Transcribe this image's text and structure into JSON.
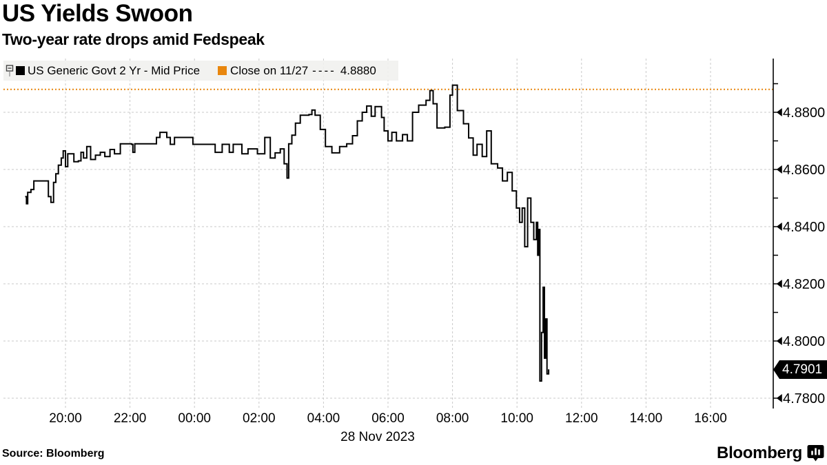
{
  "header": {
    "title": "US Yields Swoon",
    "subtitle": "Two-year rate drops amid Fedspeak"
  },
  "legend": {
    "flag_icon": "chart-flag-icon",
    "series_swatch_color": "#000000",
    "series_label": "US Generic Govt 2 Yr - Mid Price",
    "close_swatch_color": "#e8860d",
    "close_label": "Close on 11/27",
    "close_dashes": "----",
    "close_value": "4.8880"
  },
  "footer": {
    "source": "Source: Bloomberg",
    "brand": "Bloomberg",
    "brand_icon": "bloomberg-terminal-icon"
  },
  "colors": {
    "line_black": "#000000",
    "accent_orange": "#e8860d",
    "grid_gray": "#c9c9c9",
    "legend_bg": "#f0f0ee",
    "badge_bg": "#000000",
    "badge_fg": "#ffffff"
  },
  "annotations": {
    "last_price": "4.7901"
  },
  "chart_data": {
    "type": "line",
    "style": "step",
    "title": "US Yields Swoon",
    "subtitle": "Two-year rate drops amid Fedspeak",
    "x_axis": {
      "unit": "hour-of-day (27-28 Nov 2023, hours >24 are 28 Nov)",
      "start": 18.75,
      "end": 41.95,
      "date_label": "28 Nov 2023",
      "ticks": [
        {
          "hour": 20,
          "label": "20:00"
        },
        {
          "hour": 22,
          "label": "22:00"
        },
        {
          "hour": 24,
          "label": "00:00"
        },
        {
          "hour": 26,
          "label": "02:00"
        },
        {
          "hour": 28,
          "label": "04:00"
        },
        {
          "hour": 30,
          "label": "06:00"
        },
        {
          "hour": 32,
          "label": "08:00"
        },
        {
          "hour": 34,
          "label": "10:00"
        },
        {
          "hour": 36,
          "label": "12:00"
        },
        {
          "hour": 38,
          "label": "14:00"
        },
        {
          "hour": 40,
          "label": "16:00"
        }
      ]
    },
    "y_axis": {
      "min": 4.776,
      "max": 4.892,
      "ticks": [
        {
          "value": 4.88,
          "label": "4.8800"
        },
        {
          "value": 4.86,
          "label": "4.8600"
        },
        {
          "value": 4.84,
          "label": "4.8400"
        },
        {
          "value": 4.82,
          "label": "4.8200"
        },
        {
          "value": 4.8,
          "label": "4.8000"
        },
        {
          "value": 4.78,
          "label": "4.7800"
        }
      ],
      "minor_ticks": [
        4.89,
        4.87,
        4.85,
        4.83,
        4.81,
        4.79
      ]
    },
    "reference_line": {
      "label": "Close on 11/27",
      "value": 4.888,
      "color": "#e8860d",
      "style": "dotted"
    },
    "last_value": 4.7901,
    "grid": true,
    "legend_position": "top-left",
    "series": [
      {
        "name": "US Generic Govt 2 Yr - Mid Price",
        "color": "#000000",
        "points": [
          [
            18.75,
            4.8505
          ],
          [
            18.79,
            4.848
          ],
          [
            18.83,
            4.852
          ],
          [
            18.93,
            4.853
          ],
          [
            19.02,
            4.856
          ],
          [
            19.42,
            4.856
          ],
          [
            19.47,
            4.8505
          ],
          [
            19.55,
            4.8485
          ],
          [
            19.63,
            4.8555
          ],
          [
            19.7,
            4.8585
          ],
          [
            19.78,
            4.8615
          ],
          [
            19.87,
            4.864
          ],
          [
            19.93,
            4.8665
          ],
          [
            20.0,
            4.861
          ],
          [
            20.07,
            4.8655
          ],
          [
            20.2,
            4.8655
          ],
          [
            20.26,
            4.8627
          ],
          [
            20.4,
            4.863
          ],
          [
            20.48,
            4.866
          ],
          [
            20.56,
            4.864
          ],
          [
            20.66,
            4.868
          ],
          [
            20.78,
            4.8635
          ],
          [
            20.93,
            4.865
          ],
          [
            21.08,
            4.866
          ],
          [
            21.22,
            4.8645
          ],
          [
            21.38,
            4.867
          ],
          [
            21.52,
            4.8655
          ],
          [
            21.7,
            4.869
          ],
          [
            22.05,
            4.8688
          ],
          [
            22.09,
            4.866
          ],
          [
            22.15,
            4.869
          ],
          [
            22.75,
            4.869
          ],
          [
            22.82,
            4.8712
          ],
          [
            22.93,
            4.873
          ],
          [
            23.14,
            4.8712
          ],
          [
            23.25,
            4.8688
          ],
          [
            23.38,
            4.8712
          ],
          [
            23.9,
            4.8712
          ],
          [
            23.95,
            4.8688
          ],
          [
            24.6,
            4.8688
          ],
          [
            24.64,
            4.866
          ],
          [
            24.82,
            4.866
          ],
          [
            24.86,
            4.8688
          ],
          [
            25.04,
            4.8688
          ],
          [
            25.08,
            4.866
          ],
          [
            25.2,
            4.8688
          ],
          [
            25.47,
            4.8655
          ],
          [
            25.66,
            4.8672
          ],
          [
            25.95,
            4.8655
          ],
          [
            26.18,
            4.8712
          ],
          [
            26.35,
            4.864
          ],
          [
            26.5,
            4.8658
          ],
          [
            26.66,
            4.8672
          ],
          [
            26.78,
            4.862
          ],
          [
            26.87,
            4.857
          ],
          [
            26.92,
            4.869
          ],
          [
            27.02,
            4.872
          ],
          [
            27.13,
            4.8762
          ],
          [
            27.28,
            4.879
          ],
          [
            27.55,
            4.8792
          ],
          [
            27.64,
            4.8808
          ],
          [
            27.74,
            4.879
          ],
          [
            27.9,
            4.874
          ],
          [
            28.06,
            4.868
          ],
          [
            28.26,
            4.8658
          ],
          [
            28.5,
            4.868
          ],
          [
            28.72,
            4.869
          ],
          [
            28.9,
            4.8718
          ],
          [
            29.05,
            4.877
          ],
          [
            29.2,
            4.88
          ],
          [
            29.34,
            4.8822
          ],
          [
            29.48,
            4.8786
          ],
          [
            29.6,
            4.882
          ],
          [
            29.8,
            4.8782
          ],
          [
            29.88,
            4.8735
          ],
          [
            30.0,
            4.87
          ],
          [
            30.12,
            4.873
          ],
          [
            30.26,
            4.87
          ],
          [
            30.45,
            4.8722
          ],
          [
            30.6,
            4.87
          ],
          [
            30.76,
            4.88
          ],
          [
            30.95,
            4.8825
          ],
          [
            31.18,
            4.8842
          ],
          [
            31.3,
            4.8876
          ],
          [
            31.4,
            4.883
          ],
          [
            31.52,
            4.8745
          ],
          [
            31.76,
            4.8748
          ],
          [
            31.92,
            4.886
          ],
          [
            32.0,
            4.8895
          ],
          [
            32.15,
            4.8806
          ],
          [
            32.34,
            4.876
          ],
          [
            32.5,
            4.871
          ],
          [
            32.64,
            4.865
          ],
          [
            32.76,
            4.8688
          ],
          [
            32.92,
            4.8645
          ],
          [
            33.06,
            4.8735
          ],
          [
            33.2,
            4.862
          ],
          [
            33.4,
            4.8605
          ],
          [
            33.55,
            4.856
          ],
          [
            33.7,
            4.859
          ],
          [
            33.85,
            4.8525
          ],
          [
            33.98,
            4.8465
          ],
          [
            34.08,
            4.8415
          ],
          [
            34.16,
            4.8465
          ],
          [
            34.24,
            4.833
          ],
          [
            34.33,
            4.85
          ],
          [
            34.43,
            4.8415
          ],
          [
            34.52,
            4.8355
          ],
          [
            34.6,
            4.8415
          ],
          [
            34.64,
            4.83
          ],
          [
            34.68,
            4.839
          ],
          [
            34.71,
            4.786
          ],
          [
            34.76,
            4.803
          ],
          [
            34.81,
            4.8188
          ],
          [
            34.85,
            4.794
          ],
          [
            34.89,
            4.8077
          ],
          [
            34.93,
            4.7885
          ],
          [
            34.98,
            4.7901
          ]
        ]
      }
    ]
  }
}
